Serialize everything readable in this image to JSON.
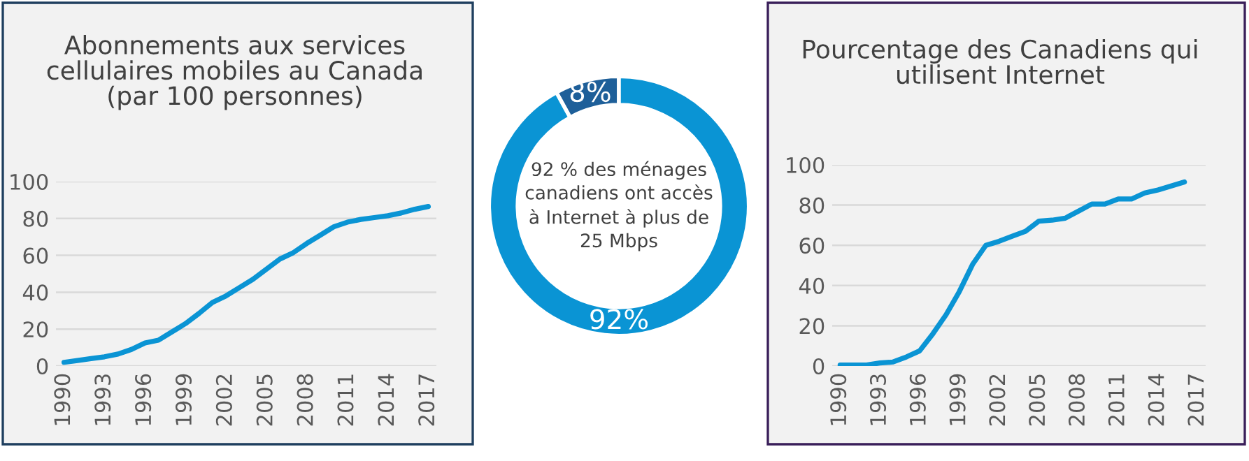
{
  "chart_data": [
    {
      "type": "line",
      "title": "Abonnements aux services cellulaires mobiles au Canada\n(par 100 personnes)",
      "categories": [
        "1990",
        null,
        null,
        "1993",
        null,
        null,
        "1996",
        null,
        null,
        "1999",
        null,
        null,
        "2002",
        null,
        null,
        "2005",
        null,
        null,
        "2008",
        null,
        null,
        "2011",
        null,
        null,
        "2014",
        null,
        null,
        "2017"
      ],
      "series": [
        {
          "color": "#0a94d4",
          "values": [
            2,
            3,
            4,
            5,
            6.5,
            9,
            12.5,
            14,
            18.5,
            23,
            28.5,
            34.5,
            38,
            42.5,
            47,
            52.5,
            58,
            61.5,
            66.5,
            71,
            75.5,
            78,
            79.5,
            80.5,
            81.5,
            83,
            85,
            86.5
          ]
        }
      ],
      "ylim": [
        0,
        100
      ],
      "yticks": [
        0,
        20,
        40,
        60,
        80,
        100
      ],
      "grid": "y",
      "marker": "none",
      "line_style": "solid"
    },
    {
      "type": "donut",
      "categories": [
        null,
        null
      ],
      "values": [
        8,
        92
      ],
      "colors": [
        "#1e5f99",
        "#0a94d4"
      ],
      "value_labels": [
        "8%",
        "92%"
      ],
      "annotations": [
        "92 % des ménages canadiens ont accès à Internet à plus de 25 Mbps"
      ]
    },
    {
      "type": "line",
      "title": "Pourcentage des Canadiens qui utilisent Internet",
      "categories": [
        "1990",
        null,
        null,
        "1993",
        null,
        null,
        "1996",
        null,
        null,
        "1999",
        null,
        null,
        "2002",
        null,
        null,
        "2005",
        null,
        null,
        "2008",
        null,
        null,
        "2011",
        null,
        null,
        "2014",
        null,
        null,
        "2017"
      ],
      "series": [
        {
          "color": "#0a94d4",
          "values": [
            0.5,
            0.5,
            0.5,
            1.5,
            2,
            4.5,
            7.5,
            16,
            25.5,
            37,
            50.5,
            60,
            62,
            64.5,
            67,
            72,
            72.5,
            73.5,
            77,
            80.5,
            80.5,
            83,
            83,
            86,
            87.5,
            89.5,
            91.5,
            null
          ]
        }
      ],
      "ylim": [
        0,
        100
      ],
      "yticks": [
        0,
        20,
        40,
        60,
        80,
        100
      ],
      "grid": "y",
      "marker": "none",
      "line_style": "solid"
    }
  ]
}
